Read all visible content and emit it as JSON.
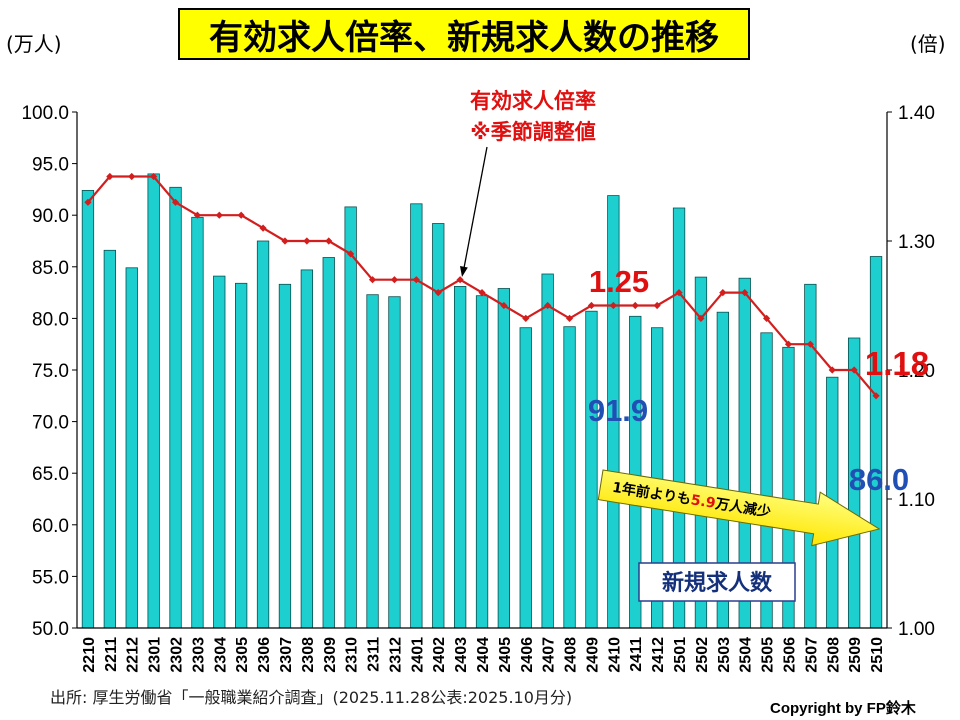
{
  "chart_data": {
    "type": "bar",
    "title": "有効求人倍率、新規求人数の推移",
    "ylabel": "(万人)",
    "y2label": "(倍)",
    "ylim": [
      50,
      100
    ],
    "y2lim": [
      1.0,
      1.4
    ],
    "y_ticks": [
      "100.0",
      "95.0",
      "90.0",
      "85.0",
      "80.0",
      "75.0",
      "70.0",
      "65.0",
      "60.0",
      "55.0",
      "50.0"
    ],
    "y2_ticks": [
      "1.40",
      "1.30",
      "1.20",
      "1.10",
      "1.00"
    ],
    "grid": false,
    "legend_position": "bottom-right",
    "categories": [
      "2210",
      "2211",
      "2212",
      "2301",
      "2302",
      "2303",
      "2304",
      "2305",
      "2306",
      "2307",
      "2308",
      "2309",
      "2310",
      "2311",
      "2312",
      "2401",
      "2402",
      "2403",
      "2404",
      "2405",
      "2406",
      "2407",
      "2408",
      "2409",
      "2410",
      "2411",
      "2412",
      "2501",
      "2502",
      "2503",
      "2504",
      "2505",
      "2506",
      "2507",
      "2508",
      "2509",
      "2510"
    ],
    "series": [
      {
        "name": "新規求人数",
        "type": "bar",
        "axis": "left",
        "values": [
          92.4,
          86.6,
          84.9,
          94.0,
          92.7,
          89.8,
          84.1,
          83.4,
          87.5,
          83.3,
          84.7,
          85.9,
          90.8,
          82.3,
          82.1,
          91.1,
          89.2,
          83.1,
          82.2,
          82.9,
          79.1,
          84.3,
          79.2,
          80.7,
          91.9,
          80.2,
          79.1,
          90.7,
          84.0,
          80.6,
          83.9,
          78.6,
          77.2,
          83.3,
          74.3,
          78.1,
          86.0
        ]
      },
      {
        "name": "有効求人倍率",
        "type": "line",
        "axis": "right",
        "values": [
          1.33,
          1.35,
          1.35,
          1.35,
          1.33,
          1.32,
          1.32,
          1.32,
          1.31,
          1.3,
          1.3,
          1.3,
          1.29,
          1.27,
          1.27,
          1.27,
          1.26,
          1.27,
          1.26,
          1.25,
          1.24,
          1.25,
          1.24,
          1.25,
          1.25,
          1.25,
          1.25,
          1.26,
          1.24,
          1.26,
          1.26,
          1.24,
          1.22,
          1.22,
          1.2,
          1.2,
          1.18
        ]
      }
    ],
    "data_labels": [
      "1.25",
      "1.18",
      "91.9",
      "86.0"
    ],
    "line_note": "※季節調整値",
    "arrow_note": {
      "prefix": "1年前よりも",
      "number": "5.9",
      "suffix": "万人減少"
    }
  },
  "source": "出所: 厚生労働省「一般職業紹介調査」(2025.11.28公表:2025.10月分)",
  "copyright": "Copyright by FP鈴木",
  "colors": {
    "bar": "#1ECFCF",
    "bar_edge": "#0B4F4F",
    "line": "#D21E1E",
    "ratio_label": "#E01010",
    "count_label": "#2050B4",
    "legend_text": "#14307A",
    "title_bg": "#FFFF00",
    "arrow_fill": "#FFF21A"
  }
}
